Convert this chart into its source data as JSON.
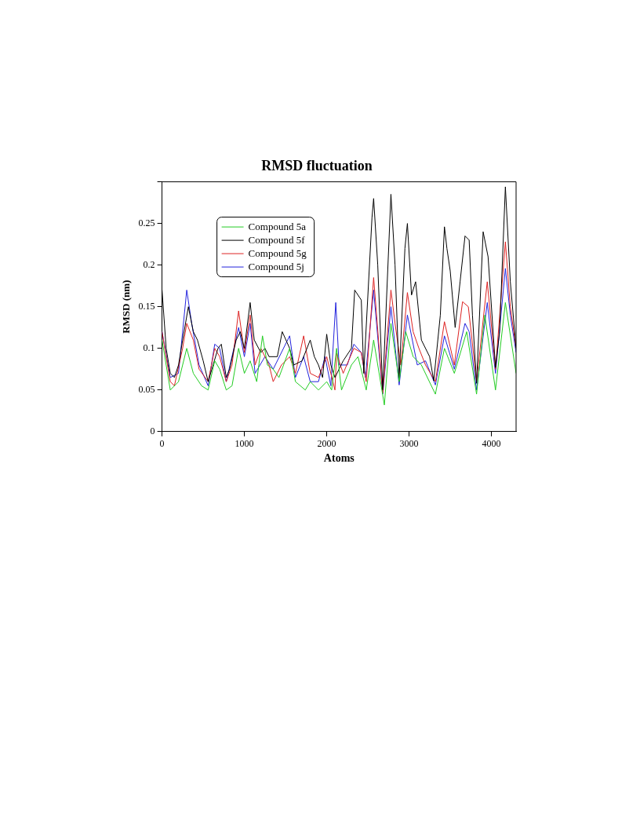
{
  "chart_data": {
    "type": "line",
    "title": "RMSD fluctuation",
    "xlabel": "Atoms",
    "ylabel": "RMSD (nm)",
    "xlim": [
      0,
      4300
    ],
    "xticks": [
      0,
      1000,
      2000,
      3000,
      4000
    ],
    "ylim": [
      0,
      0.3
    ],
    "yticks": [
      0,
      0.05,
      0.1,
      0.15,
      0.2,
      0.25,
      {
        "value": 0.3,
        "label": null
      }
    ],
    "grid": false,
    "legend": "top left",
    "marker": "none",
    "line_style": "solid",
    "series": [
      {
        "name": "Compound 5a",
        "color": "#22cc22",
        "x": [
          0,
          100,
          200,
          300,
          380,
          480,
          560,
          640,
          700,
          780,
          850,
          930,
          1000,
          1070,
          1150,
          1220,
          1280,
          1350,
          1420,
          1550,
          1620,
          1740,
          1800,
          1900,
          2000,
          2060,
          2120,
          2180,
          2300,
          2380,
          2480,
          2570,
          2700,
          2780,
          2880,
          2960,
          3050,
          3150,
          3320,
          3430,
          3550,
          3700,
          3820,
          3920,
          4050,
          4170,
          4300
        ],
        "values": [
          0.11,
          0.05,
          0.06,
          0.1,
          0.07,
          0.055,
          0.05,
          0.085,
          0.075,
          0.05,
          0.055,
          0.1,
          0.07,
          0.085,
          0.06,
          0.115,
          0.08,
          0.075,
          0.065,
          0.1,
          0.06,
          0.05,
          0.06,
          0.05,
          0.06,
          0.05,
          0.1,
          0.05,
          0.08,
          0.09,
          0.05,
          0.11,
          0.032,
          0.13,
          0.06,
          0.12,
          0.09,
          0.08,
          0.045,
          0.1,
          0.07,
          0.12,
          0.045,
          0.14,
          0.05,
          0.155,
          0.07
        ]
      },
      {
        "name": "Compound 5f",
        "color": "#000000",
        "x": [
          0,
          50,
          100,
          150,
          200,
          250,
          320,
          380,
          430,
          500,
          560,
          620,
          680,
          720,
          780,
          820,
          900,
          950,
          1000,
          1070,
          1120,
          1200,
          1250,
          1300,
          1400,
          1460,
          1550,
          1600,
          1700,
          1800,
          1850,
          1900,
          1950,
          2000,
          2050,
          2100,
          2200,
          2300,
          2340,
          2420,
          2450,
          2550,
          2570,
          2620,
          2680,
          2780,
          2830,
          2880,
          2950,
          2980,
          3030,
          3080,
          3150,
          3250,
          3300,
          3380,
          3430,
          3460,
          3500,
          3560,
          3620,
          3680,
          3730,
          3770,
          3820,
          3900,
          3960,
          4050,
          4100,
          4170,
          4230,
          4300
        ],
        "values": [
          0.17,
          0.1,
          0.07,
          0.065,
          0.08,
          0.11,
          0.15,
          0.12,
          0.11,
          0.085,
          0.06,
          0.08,
          0.1,
          0.105,
          0.065,
          0.075,
          0.11,
          0.12,
          0.1,
          0.155,
          0.11,
          0.095,
          0.1,
          0.09,
          0.09,
          0.12,
          0.1,
          0.08,
          0.085,
          0.11,
          0.09,
          0.08,
          0.065,
          0.117,
          0.08,
          0.065,
          0.085,
          0.1,
          0.17,
          0.158,
          0.07,
          0.257,
          0.28,
          0.2,
          0.05,
          0.285,
          0.2,
          0.064,
          0.22,
          0.25,
          0.164,
          0.18,
          0.11,
          0.09,
          0.061,
          0.14,
          0.246,
          0.22,
          0.193,
          0.125,
          0.18,
          0.235,
          0.23,
          0.14,
          0.058,
          0.24,
          0.21,
          0.077,
          0.12,
          0.294,
          0.18,
          0.1
        ]
      },
      {
        "name": "Compound 5g",
        "color": "#dd2222",
        "x": [
          0,
          100,
          150,
          250,
          300,
          380,
          450,
          560,
          640,
          700,
          780,
          850,
          930,
          1000,
          1070,
          1130,
          1200,
          1300,
          1350,
          1450,
          1550,
          1620,
          1720,
          1800,
          1900,
          2000,
          2100,
          2120,
          2200,
          2330,
          2420,
          2480,
          2570,
          2680,
          2780,
          2830,
          2900,
          2980,
          3050,
          3120,
          3200,
          3320,
          3430,
          3550,
          3650,
          3720,
          3820,
          3950,
          4050,
          4170,
          4230,
          4300
        ],
        "values": [
          0.12,
          0.06,
          0.055,
          0.1,
          0.13,
          0.11,
          0.075,
          0.06,
          0.1,
          0.09,
          0.06,
          0.08,
          0.145,
          0.095,
          0.14,
          0.08,
          0.1,
          0.08,
          0.06,
          0.08,
          0.09,
          0.07,
          0.115,
          0.07,
          0.065,
          0.09,
          0.05,
          0.094,
          0.07,
          0.1,
          0.095,
          0.06,
          0.185,
          0.046,
          0.17,
          0.13,
          0.08,
          0.167,
          0.12,
          0.1,
          0.08,
          0.06,
          0.132,
          0.08,
          0.156,
          0.15,
          0.06,
          0.18,
          0.075,
          0.228,
          0.15,
          0.1
        ]
      },
      {
        "name": "Compound 5j",
        "color": "#2222dd",
        "x": [
          0,
          100,
          200,
          300,
          360,
          450,
          560,
          640,
          700,
          780,
          930,
          1000,
          1070,
          1130,
          1250,
          1350,
          1550,
          1620,
          1720,
          1800,
          1900,
          1980,
          2050,
          2110,
          2150,
          2250,
          2330,
          2420,
          2470,
          2570,
          2680,
          2780,
          2880,
          2980,
          3100,
          3200,
          3320,
          3430,
          3550,
          3680,
          3730,
          3820,
          3950,
          4050,
          4170,
          4230,
          4300
        ],
        "values": [
          0.12,
          0.065,
          0.07,
          0.17,
          0.13,
          0.08,
          0.055,
          0.105,
          0.1,
          0.06,
          0.125,
          0.09,
          0.13,
          0.07,
          0.09,
          0.075,
          0.115,
          0.065,
          0.09,
          0.06,
          0.06,
          0.09,
          0.055,
          0.155,
          0.08,
          0.08,
          0.105,
          0.095,
          0.065,
          0.17,
          0.045,
          0.15,
          0.056,
          0.14,
          0.08,
          0.085,
          0.056,
          0.115,
          0.075,
          0.13,
          0.12,
          0.05,
          0.155,
          0.07,
          0.196,
          0.14,
          0.095
        ]
      }
    ]
  }
}
